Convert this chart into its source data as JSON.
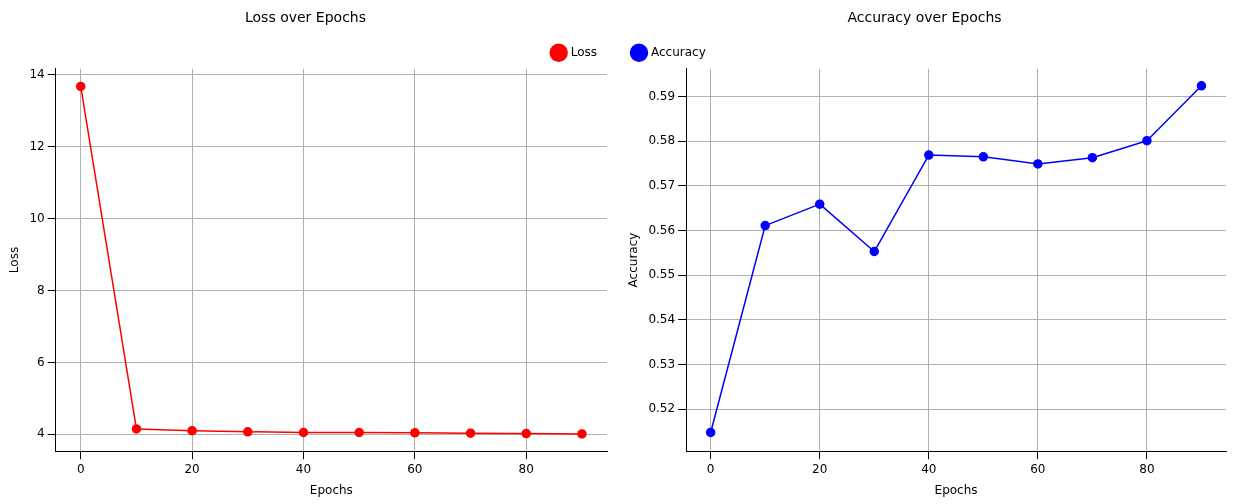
{
  "chart_data": [
    {
      "type": "line",
      "title": "Loss over Epochs",
      "xlabel": "Epochs",
      "ylabel": "Loss",
      "x": [
        0,
        10,
        20,
        30,
        40,
        50,
        60,
        70,
        80,
        90
      ],
      "series": [
        {
          "name": "Loss",
          "color": "#ff0000",
          "values": [
            13.68,
            4.15,
            4.1,
            4.07,
            4.05,
            4.05,
            4.04,
            4.03,
            4.02,
            4.01
          ]
        }
      ],
      "xlim": [
        -4.5,
        94.5
      ],
      "xticks": [
        0,
        20,
        40,
        60,
        80
      ],
      "ylim": [
        3.53,
        14.17
      ],
      "yticks": [
        4,
        6,
        8,
        10,
        12,
        14
      ],
      "grid": true,
      "legend": "top right",
      "marker": "circle",
      "line_style": "solid"
    },
    {
      "type": "line",
      "title": "Accuracy over Epochs",
      "xlabel": "Epochs",
      "ylabel": "Accuracy",
      "x": [
        0,
        10,
        20,
        30,
        40,
        50,
        60,
        70,
        80,
        90
      ],
      "series": [
        {
          "name": "Accuracy",
          "color": "#0000ff",
          "values": [
            0.5148,
            0.5611,
            0.5659,
            0.5553,
            0.5769,
            0.5765,
            0.5749,
            0.5763,
            0.5801,
            0.5924
          ]
        }
      ],
      "xlim": [
        -4.5,
        94.5
      ],
      "xticks": [
        0,
        20,
        40,
        60,
        80
      ],
      "ylim": [
        0.5106,
        0.5962
      ],
      "yticks": [
        0.52,
        0.53,
        0.54,
        0.55,
        0.56,
        0.57,
        0.58,
        0.59
      ],
      "grid": true,
      "legend": "top left",
      "marker": "circle",
      "line_style": "solid"
    }
  ]
}
